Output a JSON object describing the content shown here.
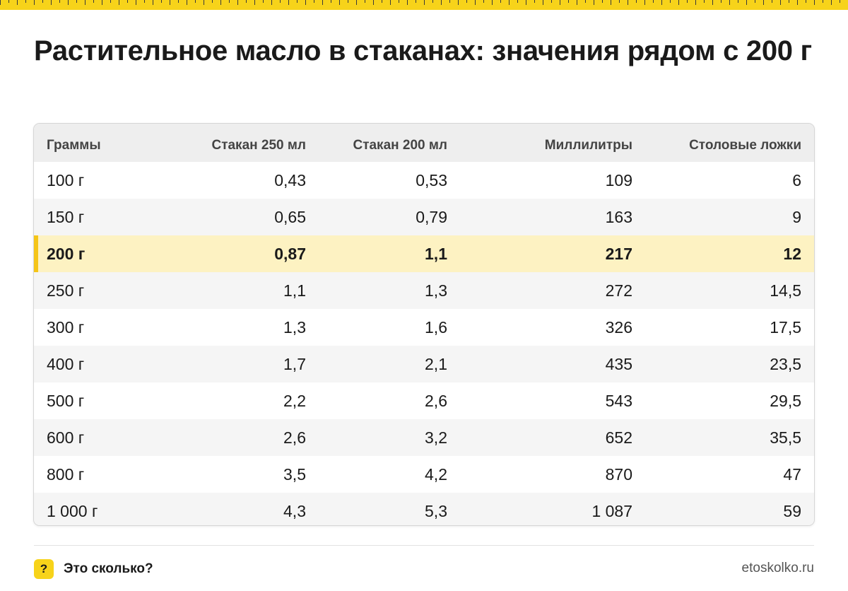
{
  "accent_color": "#f7d31a",
  "highlight_color": "#fdf2c2",
  "title": "Растительное масло в стаканах: значения рядом с 200 г",
  "table": {
    "headers": [
      "Граммы",
      "Стакан 250 мл",
      "Стакан 200 мл",
      "Миллилитры",
      "Столовые ложки"
    ],
    "highlight_row": 2,
    "rows": [
      [
        "100 г",
        "0,43",
        "0,53",
        "109",
        "6"
      ],
      [
        "150 г",
        "0,65",
        "0,79",
        "163",
        "9"
      ],
      [
        "200 г",
        "0,87",
        "1,1",
        "217",
        "12"
      ],
      [
        "250 г",
        "1,1",
        "1,3",
        "272",
        "14,5"
      ],
      [
        "300 г",
        "1,3",
        "1,6",
        "326",
        "17,5"
      ],
      [
        "400 г",
        "1,7",
        "2,1",
        "435",
        "23,5"
      ],
      [
        "500 г",
        "2,2",
        "2,6",
        "543",
        "29,5"
      ],
      [
        "600 г",
        "2,6",
        "3,2",
        "652",
        "35,5"
      ],
      [
        "800 г",
        "3,5",
        "4,2",
        "870",
        "47"
      ],
      [
        "1 000 г",
        "4,3",
        "5,3",
        "1 087",
        "59"
      ]
    ]
  },
  "footer": {
    "brand_icon": "question-mark-icon",
    "brand_icon_glyph": "?",
    "brand_name": "Это сколько?",
    "site": "etoskolko.ru"
  }
}
